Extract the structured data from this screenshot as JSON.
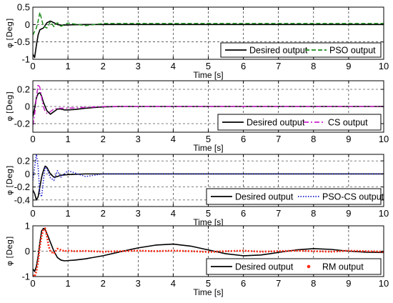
{
  "chart_data": [
    {
      "type": "line",
      "xlabel": "Time [s]",
      "ylabel": "φ [Deg]",
      "xlim": [
        0,
        10
      ],
      "ylim": [
        -1,
        0.5
      ],
      "xticks": [
        "0",
        "1",
        "2",
        "3",
        "4",
        "5",
        "6",
        "7",
        "8",
        "9",
        "10"
      ],
      "yticks": [
        "-1",
        "-0.5",
        "0",
        "0.5"
      ],
      "grid": true,
      "legend_position": "bottom-right",
      "series": [
        {
          "name": "Desired output",
          "color": "#000000",
          "style": "solid",
          "x": [
            0,
            0.05,
            0.1,
            0.15,
            0.2,
            0.3,
            0.4,
            0.5,
            0.6,
            0.7,
            0.8,
            1.0,
            1.5,
            2,
            3,
            4,
            5,
            6,
            7,
            8,
            9,
            10
          ],
          "y": [
            -0.85,
            -0.95,
            -0.6,
            -0.3,
            -0.15,
            -0.1,
            0.05,
            0.1,
            0.05,
            0.0,
            -0.02,
            -0.01,
            0.0,
            0.0,
            0.0,
            0.0,
            0.0,
            0.0,
            0.0,
            0.0,
            0.0,
            0.0
          ]
        },
        {
          "name": "PSO output",
          "color": "#1a8a1a",
          "style": "dashed",
          "x": [
            0,
            0.1,
            0.15,
            0.2,
            0.25,
            0.3,
            0.4,
            0.5,
            0.6,
            0.7,
            0.8,
            1.0,
            1.5,
            2,
            3,
            4,
            5,
            6,
            7,
            8,
            9,
            10
          ],
          "y": [
            -0.3,
            -0.1,
            0.1,
            0.35,
            0.15,
            -0.05,
            -0.1,
            0.08,
            -0.06,
            0.05,
            -0.05,
            0.04,
            -0.03,
            0.03,
            0.03,
            0.03,
            0.03,
            0.03,
            0.03,
            0.03,
            0.03,
            0.03
          ]
        }
      ]
    },
    {
      "type": "line",
      "xlabel": "Time [s]",
      "ylabel": "φ [Deg]",
      "xlim": [
        0,
        10
      ],
      "ylim": [
        -0.3,
        0.3
      ],
      "xticks": [
        "0",
        "1",
        "2",
        "3",
        "4",
        "5",
        "6",
        "7",
        "8",
        "9",
        "10"
      ],
      "yticks": [
        "-0.2",
        "0",
        "0.2"
      ],
      "grid": true,
      "legend_position": "bottom-right",
      "series": [
        {
          "name": "Desired output",
          "color": "#000000",
          "style": "solid",
          "x": [
            0,
            0.05,
            0.1,
            0.15,
            0.2,
            0.25,
            0.3,
            0.35,
            0.4,
            0.5,
            0.6,
            0.7,
            0.8,
            0.9,
            1.0,
            1.2,
            1.5,
            2.0,
            2.5,
            3,
            4,
            5,
            6,
            7,
            8,
            9,
            10
          ],
          "y": [
            -0.12,
            -0.02,
            0.1,
            0.15,
            0.16,
            0.12,
            0.05,
            0.0,
            -0.05,
            -0.09,
            -0.06,
            -0.03,
            -0.03,
            -0.04,
            -0.04,
            -0.035,
            -0.02,
            -0.005,
            0.0,
            0.0,
            0.0,
            0.0,
            0.0,
            0.0,
            0.0,
            0.0,
            0.0
          ]
        },
        {
          "name": "CS output",
          "color": "#cc22cc",
          "style": "dashdot",
          "x": [
            0,
            0.05,
            0.1,
            0.15,
            0.2,
            0.25,
            0.3,
            0.35,
            0.4,
            0.5,
            0.6,
            0.7,
            0.8,
            1.0,
            1.5,
            2,
            3,
            4,
            5,
            6,
            7,
            8,
            9,
            10
          ],
          "y": [
            -0.22,
            -0.1,
            0.1,
            0.26,
            0.22,
            0.1,
            0.0,
            -0.06,
            -0.08,
            -0.06,
            -0.03,
            -0.02,
            -0.02,
            -0.02,
            -0.01,
            0.0,
            0.0,
            0.0,
            0.0,
            0.0,
            0.0,
            0.0,
            0.0,
            0.0
          ]
        }
      ]
    },
    {
      "type": "line",
      "xlabel": "Time [s]",
      "ylabel": "φ [Deg]",
      "xlim": [
        0,
        10
      ],
      "ylim": [
        -0.5,
        0.3
      ],
      "xticks": [
        "0",
        "1",
        "2",
        "3",
        "4",
        "5",
        "6",
        "7",
        "8",
        "9",
        "10"
      ],
      "yticks": [
        "-0.4",
        "-0.2",
        "0",
        "0.2"
      ],
      "grid": true,
      "legend_position": "bottom-right",
      "series": [
        {
          "name": "Desired output",
          "color": "#000000",
          "style": "solid",
          "x": [
            0,
            0.05,
            0.1,
            0.15,
            0.2,
            0.25,
            0.3,
            0.35,
            0.4,
            0.5,
            0.6,
            0.7,
            0.8,
            1.0,
            1.5,
            2,
            3,
            4,
            5,
            6,
            7,
            8,
            9,
            10
          ],
          "y": [
            -0.25,
            -0.3,
            -0.4,
            -0.35,
            -0.2,
            -0.05,
            0.05,
            0.12,
            0.1,
            0.0,
            -0.05,
            -0.04,
            -0.02,
            -0.01,
            0.0,
            0.0,
            0.0,
            0.0,
            0.0,
            0.0,
            0.0,
            0.0,
            0.0,
            0.0
          ]
        },
        {
          "name": "PSO-CS output",
          "color": "#1a1acc",
          "style": "dotted",
          "x": [
            0,
            0.05,
            0.1,
            0.15,
            0.2,
            0.25,
            0.3,
            0.35,
            0.4,
            0.5,
            0.6,
            0.7,
            0.8,
            1.0,
            1.5,
            2,
            3,
            4,
            5,
            6,
            7,
            8,
            9,
            10
          ],
          "y": [
            -0.1,
            0.1,
            0.3,
            0.1,
            -0.3,
            -0.35,
            -0.1,
            0.1,
            0.08,
            -0.06,
            -0.1,
            0.05,
            -0.05,
            0.05,
            -0.04,
            0.0,
            0.0,
            0.0,
            0.0,
            0.0,
            0.0,
            0.0,
            0.0,
            0.0
          ]
        }
      ]
    },
    {
      "type": "line",
      "xlabel": "Time [s]",
      "ylabel": "φ [Deg]",
      "xlim": [
        0,
        10
      ],
      "ylim": [
        -1,
        1
      ],
      "xticks": [
        "0",
        "1",
        "2",
        "3",
        "4",
        "5",
        "6",
        "7",
        "8",
        "9",
        "10"
      ],
      "yticks": [
        "-1",
        "0",
        "1"
      ],
      "grid": true,
      "legend_position": "bottom-right",
      "series": [
        {
          "name": "Desired output",
          "color": "#000000",
          "style": "solid",
          "x": [
            0,
            0.05,
            0.1,
            0.15,
            0.2,
            0.25,
            0.3,
            0.35,
            0.4,
            0.5,
            0.6,
            0.7,
            0.8,
            0.9,
            1.0,
            1.2,
            1.5,
            2.0,
            2.5,
            3.0,
            3.5,
            4.0,
            4.5,
            5.0,
            5.5,
            6.0,
            6.5,
            7.0,
            7.5,
            8.0,
            8.5,
            9.0,
            9.5,
            10
          ],
          "y": [
            -0.7,
            -0.8,
            -0.6,
            -0.2,
            0.35,
            0.8,
            0.9,
            0.85,
            0.7,
            0.35,
            0.0,
            -0.25,
            -0.35,
            -0.38,
            -0.37,
            -0.35,
            -0.3,
            -0.18,
            -0.02,
            0.13,
            0.24,
            0.28,
            0.2,
            0.05,
            -0.1,
            -0.18,
            -0.15,
            -0.05,
            0.05,
            0.1,
            0.07,
            0.0,
            -0.04,
            -0.05
          ]
        },
        {
          "name": "RM output",
          "color": "#ff2a14",
          "style": "dotted",
          "x": [
            0,
            0.05,
            0.1,
            0.15,
            0.2,
            0.25,
            0.3,
            0.35,
            0.4,
            0.45,
            0.5,
            0.6,
            0.7,
            0.8,
            0.9,
            1.0,
            1.2,
            1.5,
            2,
            2.5,
            3,
            3.5,
            4,
            4.5,
            5,
            5.5,
            6,
            6.5,
            7,
            7.5,
            8,
            8.5,
            9,
            9.5,
            10
          ],
          "y": [
            -0.95,
            -1.0,
            -0.8,
            -0.4,
            0.2,
            0.6,
            0.85,
            0.9,
            0.6,
            0.2,
            0.0,
            -0.1,
            0.1,
            0.05,
            0.0,
            0.02,
            0.0,
            0.01,
            -0.02,
            0.0,
            0.02,
            0.0,
            0.02,
            0.0,
            -0.03,
            0.0,
            0.02,
            -0.02,
            0.0,
            0.02,
            0.0,
            -0.02,
            0.02,
            0.0,
            -0.02
          ]
        }
      ]
    }
  ]
}
